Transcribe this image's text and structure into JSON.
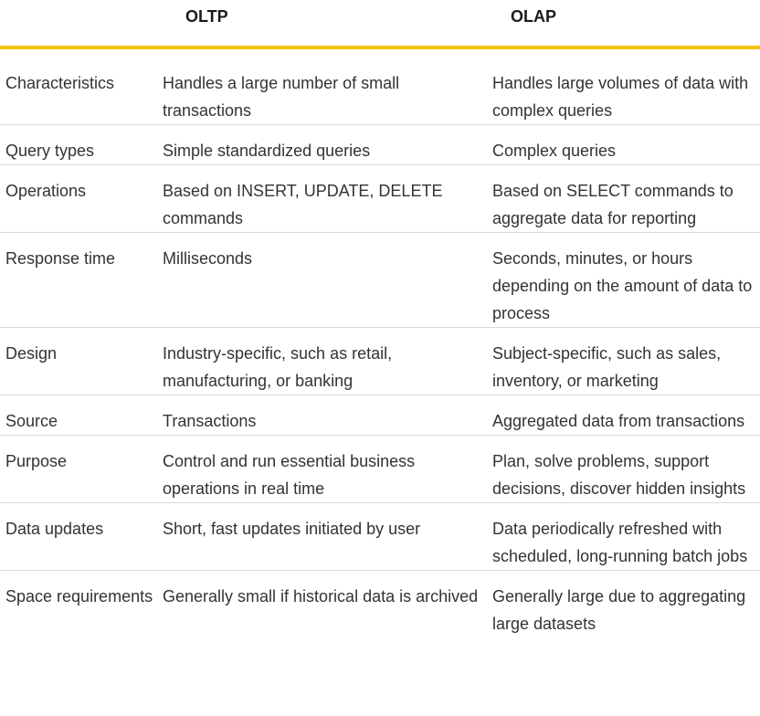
{
  "header": {
    "col1": "",
    "col2": "OLTP",
    "col3": "OLAP"
  },
  "rows": [
    {
      "label": "Characteristics",
      "oltp": "Handles a large number of small transactions",
      "olap": "Handles large volumes of data with complex queries"
    },
    {
      "label": "Query types",
      "oltp": "Simple standardized queries",
      "olap": "Complex queries"
    },
    {
      "label": "Operations",
      "oltp": "Based on INSERT, UPDATE, DELETE commands",
      "olap": "Based on SELECT commands to aggregate data for reporting"
    },
    {
      "label": "Response time",
      "oltp": "Milliseconds",
      "olap": "Seconds, minutes, or hours depending on the amount of data to process"
    },
    {
      "label": "Design",
      "oltp": "Industry-specific, such as retail, manufacturing, or banking",
      "olap": "Subject-specific, such as sales, inventory, or marketing"
    },
    {
      "label": "Source",
      "oltp": "Transactions",
      "olap": "Aggregated data from transactions"
    },
    {
      "label": "Purpose",
      "oltp": "Control and run essential business operations in real time",
      "olap": "Plan, solve problems, support decisions, discover hidden insights"
    },
    {
      "label": "Data updates",
      "oltp": "Short, fast updates initiated by user",
      "olap": "Data periodically refreshed with scheduled, long-running batch jobs"
    },
    {
      "label": "Space requirements",
      "oltp": "Generally small if historical data is archived",
      "olap": "Generally large due to aggregating large datasets"
    }
  ],
  "colors": {
    "header_rule": "#f2c200",
    "row_divider": "#d9d9d9",
    "text": "#333333"
  }
}
